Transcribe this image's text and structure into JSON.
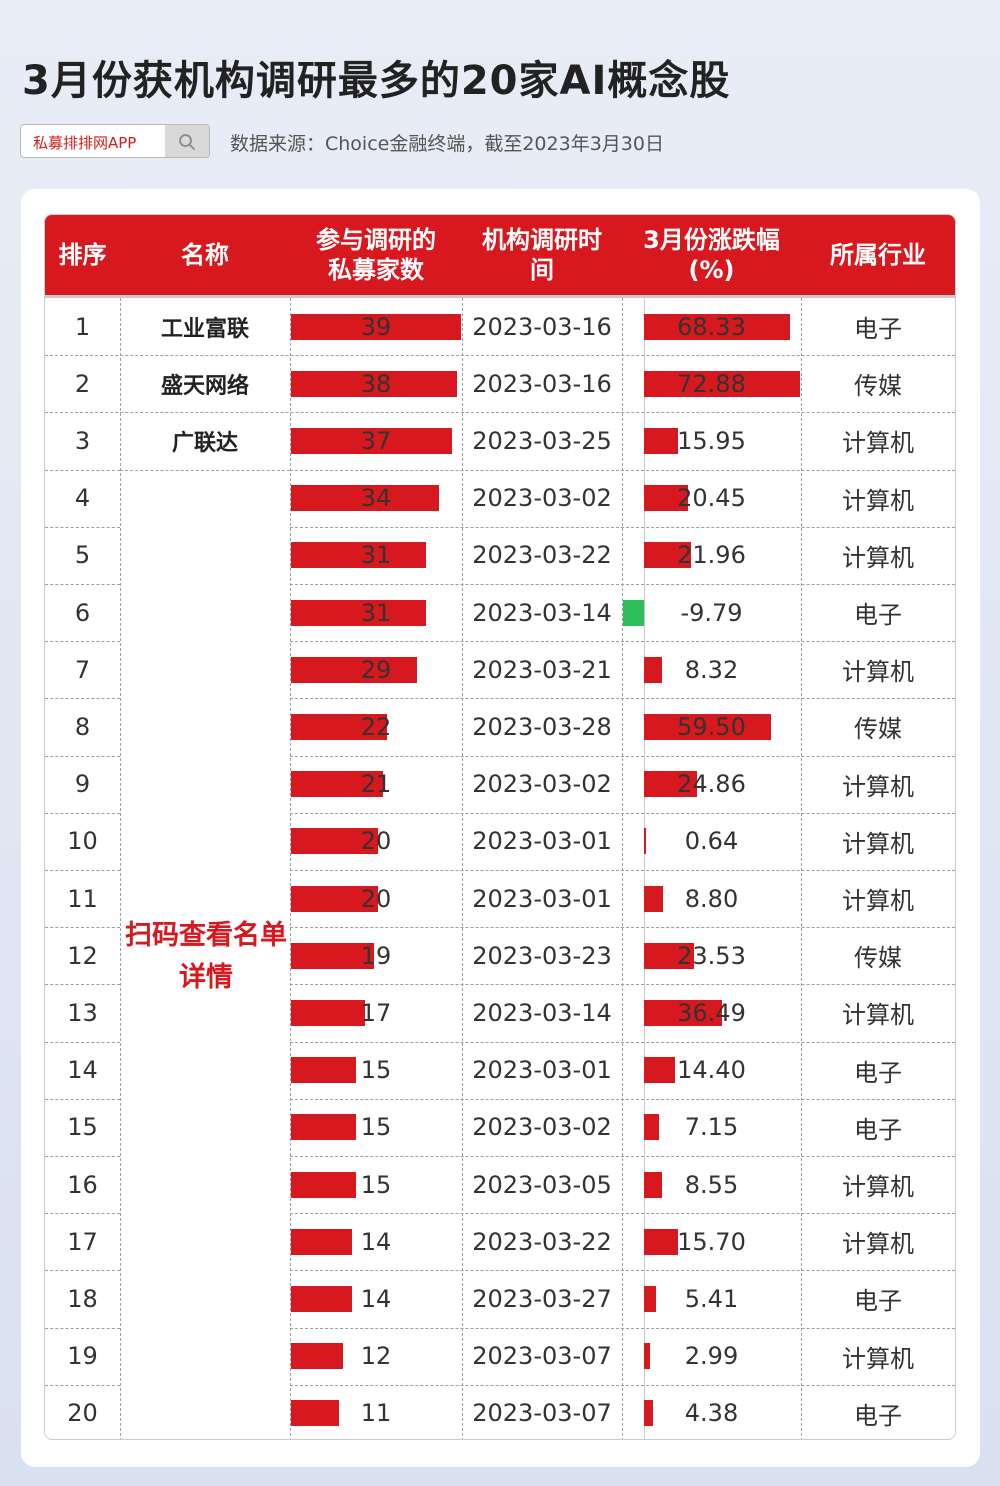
{
  "title": "3月份获机构调研最多的20家AI概念股",
  "search_box": {
    "brand": "私募排排网APP",
    "icon": "search-icon"
  },
  "source": "数据来源：Choice金融终端，截至2023年3月30日",
  "colors": {
    "accent": "#d7181e",
    "negative": "#2fbf5a",
    "header_text": "#ffffff"
  },
  "headers": {
    "rank": "排序",
    "name": "名称",
    "count": "参与调研的私募家数",
    "date": "机构调研时间",
    "change": "3月份涨跌幅(%)",
    "industry": "所属行业"
  },
  "hidden_names_note": "扫码查看名单详情",
  "chart_data": {
    "type": "table",
    "columns": [
      "排序",
      "名称",
      "参与调研的私募家数",
      "机构调研时间",
      "3月份涨跌幅(%)",
      "所属行业"
    ],
    "count_range": [
      0,
      39
    ],
    "change_range": [
      0,
      72.88
    ],
    "rows": [
      {
        "rank": "1",
        "name": "工业富联",
        "count": 39,
        "date": "2023-03-16",
        "change": "68.33",
        "change_value": 68.33,
        "industry": "电子"
      },
      {
        "rank": "2",
        "name": "盛天网络",
        "count": 38,
        "date": "2023-03-16",
        "change": "72.88",
        "change_value": 72.88,
        "industry": "传媒"
      },
      {
        "rank": "3",
        "name": "广联达",
        "count": 37,
        "date": "2023-03-25",
        "change": "15.95",
        "change_value": 15.95,
        "industry": "计算机"
      },
      {
        "rank": "4",
        "name": "",
        "count": 34,
        "date": "2023-03-02",
        "change": "20.45",
        "change_value": 20.45,
        "industry": "计算机"
      },
      {
        "rank": "5",
        "name": "",
        "count": 31,
        "date": "2023-03-22",
        "change": "21.96",
        "change_value": 21.96,
        "industry": "计算机"
      },
      {
        "rank": "6",
        "name": "",
        "count": 31,
        "date": "2023-03-14",
        "change": "-9.79",
        "change_value": -9.79,
        "industry": "电子"
      },
      {
        "rank": "7",
        "name": "",
        "count": 29,
        "date": "2023-03-21",
        "change": "8.32",
        "change_value": 8.32,
        "industry": "计算机"
      },
      {
        "rank": "8",
        "name": "",
        "count": 22,
        "date": "2023-03-28",
        "change": "59.50",
        "change_value": 59.5,
        "industry": "传媒"
      },
      {
        "rank": "9",
        "name": "",
        "count": 21,
        "date": "2023-03-02",
        "change": "24.86",
        "change_value": 24.86,
        "industry": "计算机"
      },
      {
        "rank": "10",
        "name": "",
        "count": 20,
        "date": "2023-03-01",
        "change": "0.64",
        "change_value": 0.64,
        "industry": "计算机"
      },
      {
        "rank": "11",
        "name": "",
        "count": 20,
        "date": "2023-03-01",
        "change": "8.80",
        "change_value": 8.8,
        "industry": "计算机"
      },
      {
        "rank": "12",
        "name": "",
        "count": 19,
        "date": "2023-03-23",
        "change": "23.53",
        "change_value": 23.53,
        "industry": "传媒"
      },
      {
        "rank": "13",
        "name": "",
        "count": 17,
        "date": "2023-03-14",
        "change": "36.49",
        "change_value": 36.49,
        "industry": "计算机"
      },
      {
        "rank": "14",
        "name": "",
        "count": 15,
        "date": "2023-03-01",
        "change": "14.40",
        "change_value": 14.4,
        "industry": "电子"
      },
      {
        "rank": "15",
        "name": "",
        "count": 15,
        "date": "2023-03-02",
        "change": "7.15",
        "change_value": 7.15,
        "industry": "电子"
      },
      {
        "rank": "16",
        "name": "",
        "count": 15,
        "date": "2023-03-05",
        "change": "8.55",
        "change_value": 8.55,
        "industry": "计算机"
      },
      {
        "rank": "17",
        "name": "",
        "count": 14,
        "date": "2023-03-22",
        "change": "15.70",
        "change_value": 15.7,
        "industry": "计算机"
      },
      {
        "rank": "18",
        "name": "",
        "count": 14,
        "date": "2023-03-27",
        "change": "5.41",
        "change_value": 5.41,
        "industry": "电子"
      },
      {
        "rank": "19",
        "name": "",
        "count": 12,
        "date": "2023-03-07",
        "change": "2.99",
        "change_value": 2.99,
        "industry": "计算机"
      },
      {
        "rank": "20",
        "name": "",
        "count": 11,
        "date": "2023-03-07",
        "change": "4.38",
        "change_value": 4.38,
        "industry": "电子"
      }
    ]
  }
}
